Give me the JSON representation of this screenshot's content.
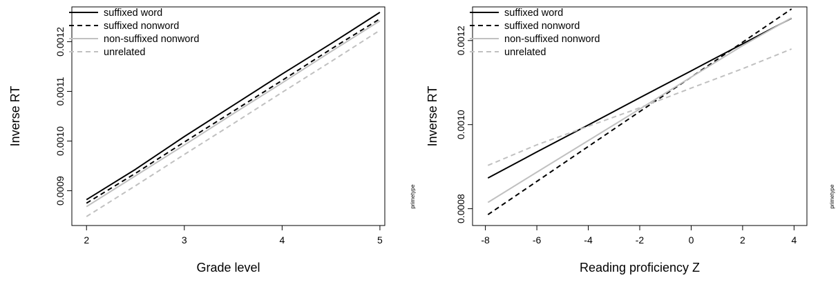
{
  "chart_data": [
    {
      "type": "line",
      "xlabel": "Grade level",
      "ylabel": "Inverse RT",
      "side_label": "primetype",
      "xlim": [
        1.85,
        5.05
      ],
      "ylim": [
        0.00083,
        0.00127
      ],
      "xticks": [
        2,
        3,
        4,
        5
      ],
      "xtick_labels": [
        "2",
        "3",
        "4",
        "5"
      ],
      "yticks": [
        0.0009,
        0.001,
        0.0011,
        0.0012
      ],
      "ytick_labels": [
        "0.0009",
        "0.0010",
        "0.0011",
        "0.0012"
      ],
      "legend_position": "top-left",
      "series": [
        {
          "name": "suffixed word",
          "color": "#000000",
          "dash": "solid",
          "x": [
            2,
            2.5,
            3,
            3.5,
            4,
            4.5,
            5
          ],
          "y": [
            0.000882,
            0.000943,
            0.001009,
            0.001072,
            0.001135,
            0.001196,
            0.001259
          ]
        },
        {
          "name": "suffixed nonword",
          "color": "#000000",
          "dash": "dashed",
          "x": [
            2,
            2.5,
            3,
            3.5,
            4,
            4.5,
            5
          ],
          "y": [
            0.000875,
            0.000935,
            0.000998,
            0.00106,
            0.001122,
            0.001185,
            0.001246
          ]
        },
        {
          "name": "non-suffixed nonword",
          "color": "#c0c0c0",
          "dash": "solid",
          "x": [
            2,
            2.5,
            3,
            3.5,
            4,
            4.5,
            5
          ],
          "y": [
            0.000868,
            0.00093,
            0.000992,
            0.001055,
            0.001117,
            0.00118,
            0.001242
          ]
        },
        {
          "name": "unrelated",
          "color": "#c0c0c0",
          "dash": "dashed",
          "x": [
            2,
            2.5,
            3,
            3.5,
            4,
            4.5,
            5
          ],
          "y": [
            0.000848,
            0.00091,
            0.000973,
            0.001035,
            0.001098,
            0.00116,
            0.001223
          ]
        }
      ]
    },
    {
      "type": "line",
      "xlabel": "Reading proficiency Z",
      "ylabel": "Inverse RT",
      "side_label": "primetype",
      "xlim": [
        -8.5,
        4.5
      ],
      "ylim": [
        0.00076,
        0.00128
      ],
      "xticks": [
        -8,
        -6,
        -4,
        -2,
        0,
        2,
        4
      ],
      "xtick_labels": [
        "-8",
        "-6",
        "-4",
        "-2",
        "0",
        "2",
        "4"
      ],
      "yticks": [
        0.0008,
        0.001,
        0.0012
      ],
      "ytick_labels": [
        "0.0008",
        "0.0010",
        "0.0012"
      ],
      "legend_position": "top-left",
      "series": [
        {
          "name": "suffixed word",
          "color": "#000000",
          "dash": "solid",
          "x": [
            -7.9,
            -6,
            -4,
            -2,
            0,
            2,
            3.9
          ],
          "y": [
            0.000873,
            0.000935,
            0.000999,
            0.001064,
            0.001128,
            0.001192,
            0.001253
          ]
        },
        {
          "name": "suffixed nonword",
          "color": "#000000",
          "dash": "dashed",
          "x": [
            -7.9,
            -6,
            -4,
            -2,
            0,
            2,
            3.9
          ],
          "y": [
            0.000786,
            0.000865,
            0.000948,
            0.001031,
            0.001113,
            0.001196,
            0.001275
          ]
        },
        {
          "name": "non-suffixed nonword",
          "color": "#c0c0c0",
          "dash": "solid",
          "x": [
            -7.9,
            -6,
            -4,
            -2,
            0,
            2,
            3.9
          ],
          "y": [
            0.000815,
            0.000887,
            0.000962,
            0.001037,
            0.001113,
            0.001188,
            0.001254
          ]
        },
        {
          "name": "unrelated",
          "color": "#c0c0c0",
          "dash": "dashed",
          "x": [
            -7.9,
            -6,
            -4,
            -2,
            0,
            2,
            3.9
          ],
          "y": [
            0.000903,
            0.000952,
            0.000996,
            0.00104,
            0.001087,
            0.001133,
            0.00118
          ]
        }
      ]
    }
  ]
}
